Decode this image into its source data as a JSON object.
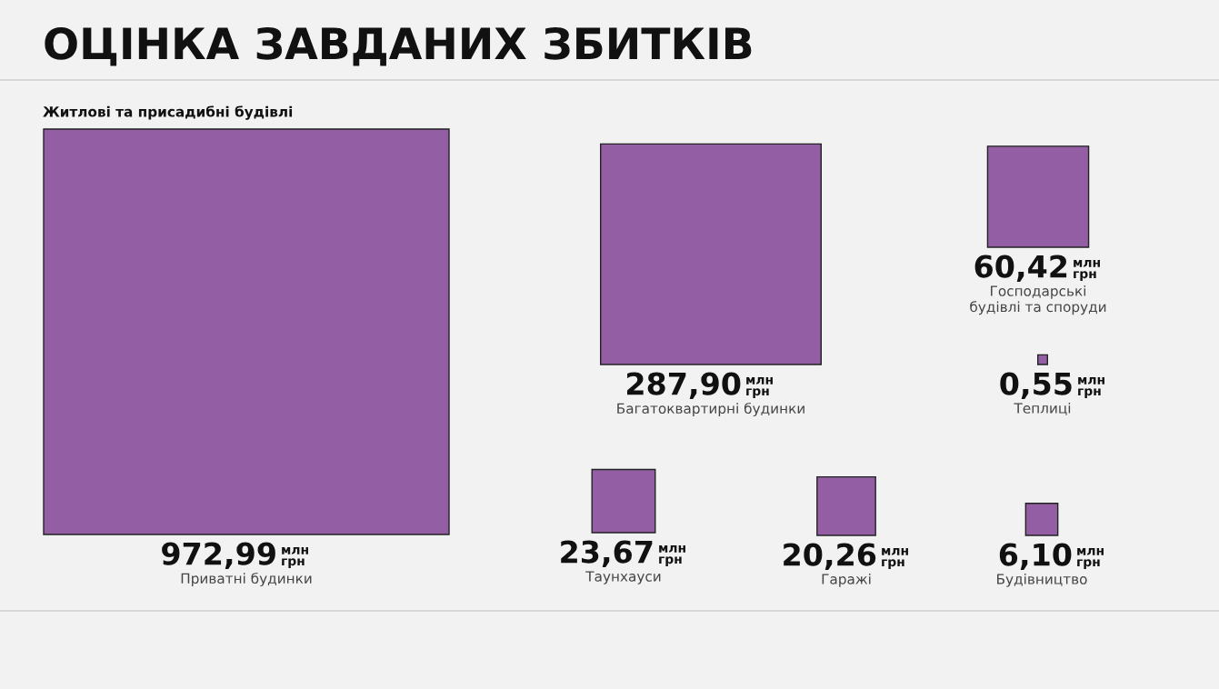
{
  "chart_data": {
    "type": "other",
    "title": "ОЦІНКА ЗАВДАНИХ ЗБИТКІВ",
    "subtitle": "Житлові та присадибні будівлі",
    "categories": [
      "Приватні будинки",
      "Багатоквартирні будинки",
      "Господарські\nбудівлі та споруди",
      "Теплиці",
      "Таунхауси",
      "Гаражі",
      "Будівництво"
    ],
    "values": [
      972.99,
      287.9,
      60.42,
      0.55,
      23.67,
      20.26,
      6.1
    ],
    "value_labels": [
      "972,99 млн грн",
      "287,90 млн грн",
      "60,42 млн грн",
      "0,55 млн грн",
      "23,67 млн грн",
      "20,26 млн грн",
      "6,10 млн грн"
    ],
    "color": "#935ea4"
  }
}
